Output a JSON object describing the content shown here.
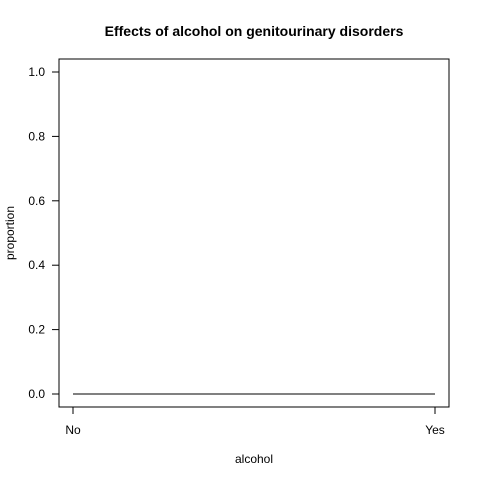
{
  "chart_data": {
    "type": "line",
    "title": "Effects of alcohol on genitourinary disorders",
    "xlabel": "alcohol",
    "ylabel": "proportion",
    "categories": [
      "No",
      "Yes"
    ],
    "series": [
      {
        "values": [
          0.0,
          0.0
        ]
      }
    ],
    "ylim": [
      0,
      1
    ],
    "yticks": [
      "0.0",
      "0.2",
      "0.4",
      "0.6",
      "0.8",
      "1.0"
    ],
    "grid": false,
    "legend": "none",
    "colors": {
      "line": "#000000",
      "axis": "#000000",
      "background": "#ffffff"
    }
  }
}
